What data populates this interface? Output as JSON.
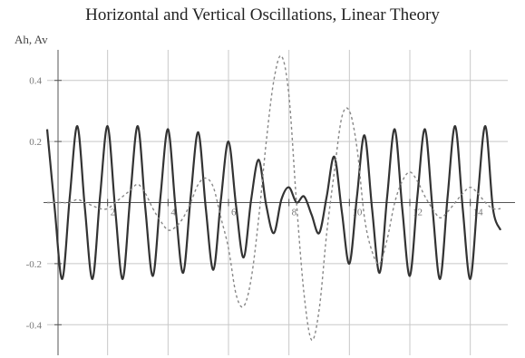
{
  "chart_data": {
    "type": "line",
    "title": "Horizontal and Vertical Oscillations, Linear Theory",
    "ylabel": "Ah, Av",
    "xlabel": "",
    "xlim": [
      0,
      15
    ],
    "ylim": [
      -0.5,
      0.5
    ],
    "grid": true,
    "legend": "none",
    "x_ticks": [
      2,
      4,
      6,
      8,
      10,
      12,
      14
    ],
    "y_ticks": [
      -0.4,
      -0.2,
      0.2,
      0.4
    ],
    "y_tick_labels": [
      "-0.4",
      "-0.2",
      "0.2",
      "0.4"
    ],
    "series": [
      {
        "style": "solid",
        "color": "#333333",
        "x": [
          0,
          0.25,
          0.5,
          0.75,
          1,
          1.25,
          1.5,
          1.75,
          2,
          2.25,
          2.5,
          2.75,
          3,
          3.25,
          3.5,
          3.75,
          4,
          4.25,
          4.5,
          4.75,
          5,
          5.25,
          5.5,
          5.75,
          6,
          6.25,
          6.5,
          6.75,
          7,
          7.25,
          7.5,
          7.75,
          8,
          8.25,
          8.5,
          8.75,
          9,
          9.25,
          9.5,
          9.75,
          10,
          10.25,
          10.5,
          10.75,
          11,
          11.25,
          11.5,
          11.75,
          12,
          12.25,
          12.5,
          12.75,
          13,
          13.25,
          13.5,
          13.75,
          14,
          14.25,
          14.5,
          14.75,
          15
        ],
        "values": [
          0.24,
          -0.02,
          -0.25,
          0.02,
          0.25,
          -0.02,
          -0.25,
          0.02,
          0.25,
          -0.02,
          -0.25,
          0.02,
          0.25,
          -0.02,
          -0.24,
          0.02,
          0.24,
          -0.02,
          -0.23,
          0.02,
          0.23,
          -0.02,
          -0.22,
          0.01,
          0.2,
          -0.01,
          -0.18,
          0.01,
          0.14,
          -0.01,
          -0.1,
          0.01,
          0.05,
          0.0,
          0.02,
          -0.04,
          -0.1,
          0.02,
          0.15,
          -0.03,
          -0.2,
          0.02,
          0.22,
          -0.02,
          -0.23,
          0.02,
          0.24,
          -0.02,
          -0.24,
          0.02,
          0.24,
          -0.02,
          -0.25,
          0.02,
          0.25,
          -0.02,
          -0.25,
          0.02,
          0.25,
          -0.02,
          -0.09
        ]
      },
      {
        "style": "dashed",
        "color": "#888888",
        "x": [
          0,
          0.25,
          0.5,
          0.75,
          1,
          1.25,
          1.5,
          1.75,
          2,
          2.25,
          2.5,
          2.75,
          3,
          3.25,
          3.5,
          3.75,
          4,
          4.25,
          4.5,
          4.75,
          5,
          5.25,
          5.5,
          5.75,
          6,
          6.25,
          6.5,
          6.75,
          7,
          7.25,
          7.5,
          7.75,
          8,
          8.25,
          8.5,
          8.75,
          9,
          9.25,
          9.5,
          9.75,
          10,
          10.25,
          10.5,
          10.75,
          11,
          11.25,
          11.5,
          11.75,
          12,
          12.25,
          12.5,
          12.75,
          13,
          13.25,
          13.5,
          13.75,
          14,
          14.25,
          14.5,
          14.75,
          15
        ],
        "values": [
          0.0,
          0.0,
          0.0,
          0.0,
          0.01,
          0.0,
          -0.01,
          -0.02,
          -0.02,
          0.0,
          0.02,
          0.04,
          0.06,
          0.03,
          -0.02,
          -0.06,
          -0.09,
          -0.08,
          -0.05,
          0.0,
          0.06,
          0.08,
          0.05,
          -0.05,
          -0.15,
          -0.3,
          -0.34,
          -0.25,
          -0.05,
          0.2,
          0.4,
          0.48,
          0.35,
          0.0,
          -0.3,
          -0.45,
          -0.35,
          -0.1,
          0.1,
          0.28,
          0.3,
          0.18,
          -0.05,
          -0.16,
          -0.2,
          -0.12,
          0.0,
          0.07,
          0.1,
          0.07,
          0.02,
          -0.02,
          -0.05,
          -0.03,
          0.0,
          0.03,
          0.05,
          0.03,
          0.0,
          -0.02,
          -0.02
        ]
      }
    ]
  }
}
